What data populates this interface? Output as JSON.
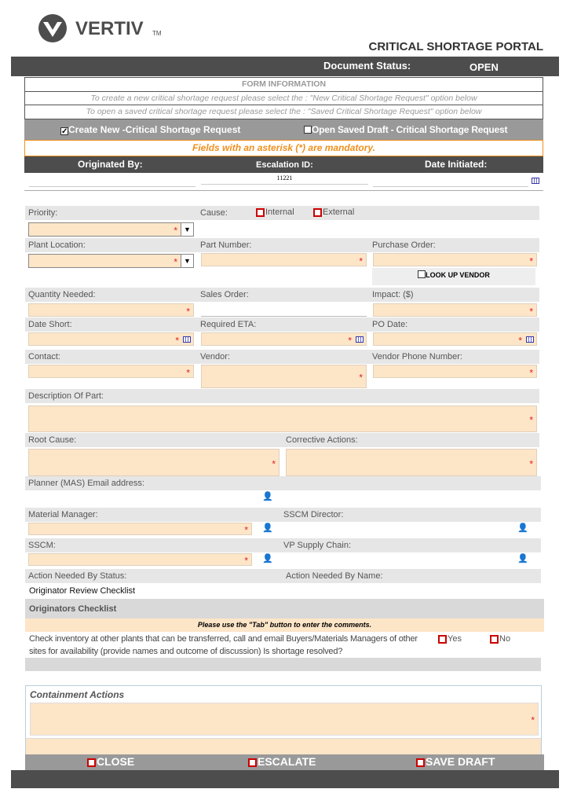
{
  "brand": {
    "logo_text": "VERTIV",
    "tm": "TM"
  },
  "header": {
    "title": "CRITICAL SHORTAGE PORTAL",
    "status_label": "Document Status:",
    "status_value": "OPEN"
  },
  "form_info": {
    "title": "FORM INFORMATION",
    "line1": "To create a new critical shortage request please select the : \"New Critical Shortage Request\" option below",
    "line2": "To open a saved critical shortage request please select the : \"Saved Critical Shortage Request\" option below"
  },
  "options": {
    "create_new": {
      "label": "Create New -Critical Shortage Request",
      "checked": true
    },
    "open_saved": {
      "label": "Open Saved Draft - Critical Shortage Request",
      "checked": false
    }
  },
  "mandatory_note": "Fields with an asterisk (*) are mandatory.",
  "info_header": {
    "originated_by": "Originated By:",
    "escalation_id": "Escalation ID:",
    "date_initiated": "Date Initiated:"
  },
  "info_values": {
    "originated_by": "",
    "escalation_id": "11221",
    "date_initiated": ""
  },
  "fields": {
    "priority": "Priority:",
    "cause": "Cause:",
    "cause_internal": "Internal",
    "cause_external": "External",
    "plant_location": "Plant Location:",
    "part_number": "Part Number:",
    "purchase_order": "Purchase Order:",
    "lookup_vendor": "LOOK UP VENDOR",
    "quantity_needed": "Quantity Needed:",
    "sales_order": "Sales Order:",
    "impact": "Impact: ($)",
    "date_short": "Date Short:",
    "required_eta": "Required ETA:",
    "po_date": "PO Date:",
    "contact": "Contact:",
    "vendor": "Vendor:",
    "vendor_phone": "Vendor Phone Number:",
    "description": "Description Of Part:",
    "root_cause": "Root Cause:",
    "corrective_actions": "Corrective Actions:",
    "planner_email": "Planner (MAS) Email address:",
    "material_manager": "Material Manager:",
    "sscm_director": "SSCM Director:",
    "sscm": "SSCM:",
    "vp_supply_chain": "VP Supply Chain:",
    "action_status": "Action Needed By Status:",
    "action_name": "Action Needed By Name:",
    "action_status_value": "Originator Review Checklist"
  },
  "checklist": {
    "title": "Originators Checklist",
    "note": "Please use the \"Tab\" button to enter the comments.",
    "question": "Check inventory at other plants that can be transferred, call and email Buyers/Materials Managers of other sites for availability (provide names and outcome of discussion)   Is shortage resolved?",
    "yes": "Yes",
    "no": "No"
  },
  "containment": {
    "title": "Containment Actions"
  },
  "actions": {
    "close": "CLOSE",
    "escalate": "ESCALATE",
    "save_draft": "SAVE DRAFT"
  },
  "colors": {
    "dark_bar": "#4d4d4d",
    "input_fill": "#fde5c8",
    "mandatory": "#f0901e",
    "required_asterisk": "#dd2222"
  }
}
